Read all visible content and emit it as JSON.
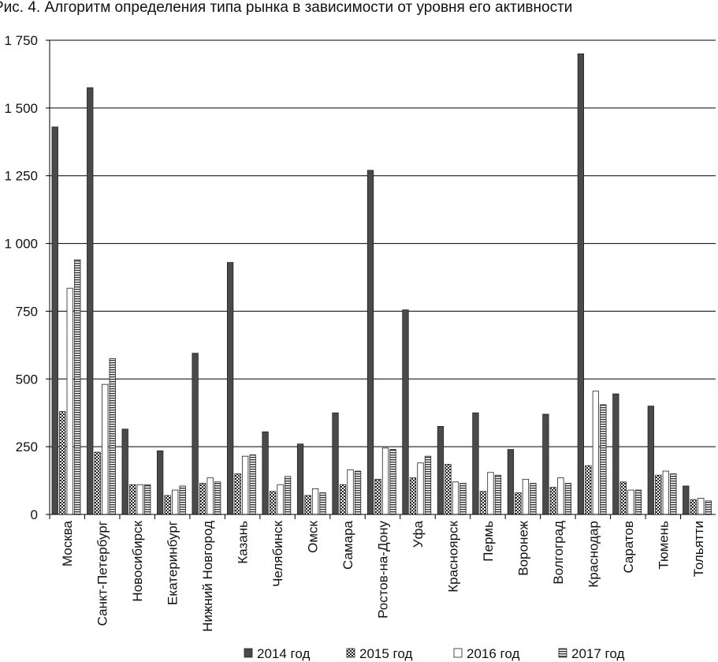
{
  "chart_data": {
    "type": "bar",
    "title": "Рис. 4. Алгоритм определения типа рынка в зависимости от уровня его активности",
    "xlabel": "",
    "ylabel": "",
    "ylim": [
      0,
      1750
    ],
    "yticks": [
      0,
      250,
      500,
      750,
      1000,
      1250,
      1500,
      1750
    ],
    "ytick_labels": [
      "0",
      "250",
      "500",
      "750",
      "1 000",
      "1 250",
      "1 500",
      "1 750"
    ],
    "grid": "horizontal",
    "legend_position": "bottom",
    "categories": [
      "Москва",
      "Санкт-Петербург",
      "Новосибирск",
      "Екатеринбург",
      "Нижний Новгород",
      "Казань",
      "Челябинск",
      "Омск",
      "Самара",
      "Ростов-на-Дону",
      "Уфа",
      "Красноярск",
      "Пермь",
      "Воронеж",
      "Волгоград",
      "Краснодар",
      "Саратов",
      "Тюмень",
      "Тольятти"
    ],
    "series": [
      {
        "name": "2014 год",
        "pattern": "solid",
        "color": "#4a4a4a",
        "values": [
          1430,
          1575,
          315,
          235,
          595,
          930,
          305,
          260,
          375,
          1270,
          755,
          325,
          375,
          240,
          370,
          1700,
          445,
          400,
          105
        ]
      },
      {
        "name": "2015 год",
        "pattern": "checker",
        "color": "#333333",
        "values": [
          380,
          230,
          110,
          70,
          115,
          150,
          85,
          70,
          110,
          130,
          135,
          185,
          85,
          80,
          100,
          180,
          120,
          145,
          55
        ]
      },
      {
        "name": "2016 год",
        "pattern": "white",
        "color": "#ffffff",
        "values": [
          835,
          480,
          110,
          90,
          135,
          215,
          110,
          95,
          165,
          245,
          190,
          120,
          155,
          130,
          135,
          455,
          90,
          160,
          60
        ]
      },
      {
        "name": "2017 год",
        "pattern": "horizontal-lines",
        "color": "#555555",
        "values": [
          940,
          575,
          110,
          105,
          120,
          220,
          140,
          80,
          160,
          240,
          215,
          115,
          145,
          115,
          115,
          405,
          90,
          150,
          50
        ]
      }
    ]
  }
}
